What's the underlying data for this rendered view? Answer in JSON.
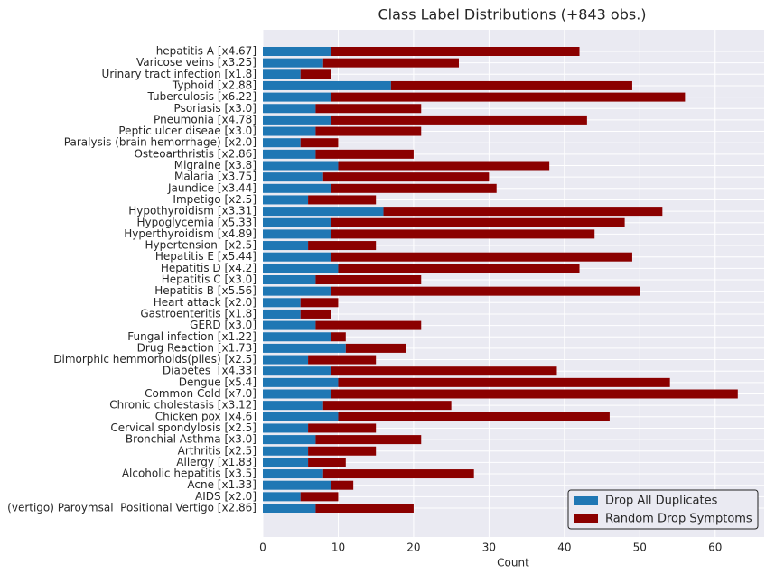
{
  "chart_data": {
    "type": "stacked-barh",
    "title": "Class Label Distributions (+843 obs.)",
    "x_label": "Count",
    "categories": [
      "hepatitis A [x4.67]",
      "Varicose veins [x3.25]",
      "Urinary tract infection [x1.8]",
      "Typhoid [x2.88]",
      "Tuberculosis [x6.22]",
      "Psoriasis [x3.0]",
      "Pneumonia [x4.78]",
      "Peptic ulcer diseae [x3.0]",
      "Paralysis (brain hemorrhage) [x2.0]",
      "Osteoarthristis [x2.86]",
      "Migraine [x3.8]",
      "Malaria [x3.75]",
      "Jaundice [x3.44]",
      "Impetigo [x2.5]",
      "Hypothyroidism [x3.31]",
      "Hypoglycemia [x5.33]",
      "Hyperthyroidism [x4.89]",
      "Hypertension  [x2.5]",
      "Hepatitis E [x5.44]",
      "Hepatitis D [x4.2]",
      "Hepatitis C [x3.0]",
      "Hepatitis B [x5.56]",
      "Heart attack [x2.0]",
      "Gastroenteritis [x1.8]",
      "GERD [x3.0]",
      "Fungal infection [x1.22]",
      "Drug Reaction [x1.73]",
      "Dimorphic hemmorhoids(piles) [x2.5]",
      "Diabetes  [x4.33]",
      "Dengue [x5.4]",
      "Common Cold [x7.0]",
      "Chronic cholestasis [x3.12]",
      "Chicken pox [x4.6]",
      "Cervical spondylosis [x2.5]",
      "Bronchial Asthma [x3.0]",
      "Arthritis [x2.5]",
      "Allergy [x1.83]",
      "Alcoholic hepatitis [x3.5]",
      "Acne [x1.33]",
      "AIDS [x2.0]",
      "(vertigo) Paroymsal  Positional Vertigo [x2.86]"
    ],
    "series": [
      {
        "name": "Drop All Duplicates",
        "color": "#1f77b4",
        "values": [
          9,
          8,
          5,
          17,
          9,
          7,
          9,
          7,
          5,
          7,
          10,
          8,
          9,
          6,
          16,
          9,
          9,
          6,
          9,
          10,
          7,
          9,
          5,
          5,
          7,
          9,
          11,
          6,
          9,
          10,
          9,
          8,
          10,
          6,
          7,
          6,
          6,
          8,
          9,
          5,
          7
        ]
      },
      {
        "name": "Random Drop Symptoms",
        "color": "#8b0000",
        "values": [
          33,
          18,
          4,
          32,
          47,
          14,
          34,
          14,
          5,
          13,
          28,
          22,
          22,
          9,
          37,
          39,
          35,
          9,
          40,
          32,
          14,
          41,
          5,
          4,
          14,
          2,
          8,
          9,
          30,
          44,
          54,
          17,
          36,
          9,
          14,
          9,
          5,
          20,
          3,
          5,
          13
        ]
      }
    ],
    "xlim": [
      0,
      66.5
    ],
    "xticks": [
      0,
      10,
      20,
      30,
      40,
      50,
      60
    ],
    "grid": true,
    "legend": "lower right"
  }
}
